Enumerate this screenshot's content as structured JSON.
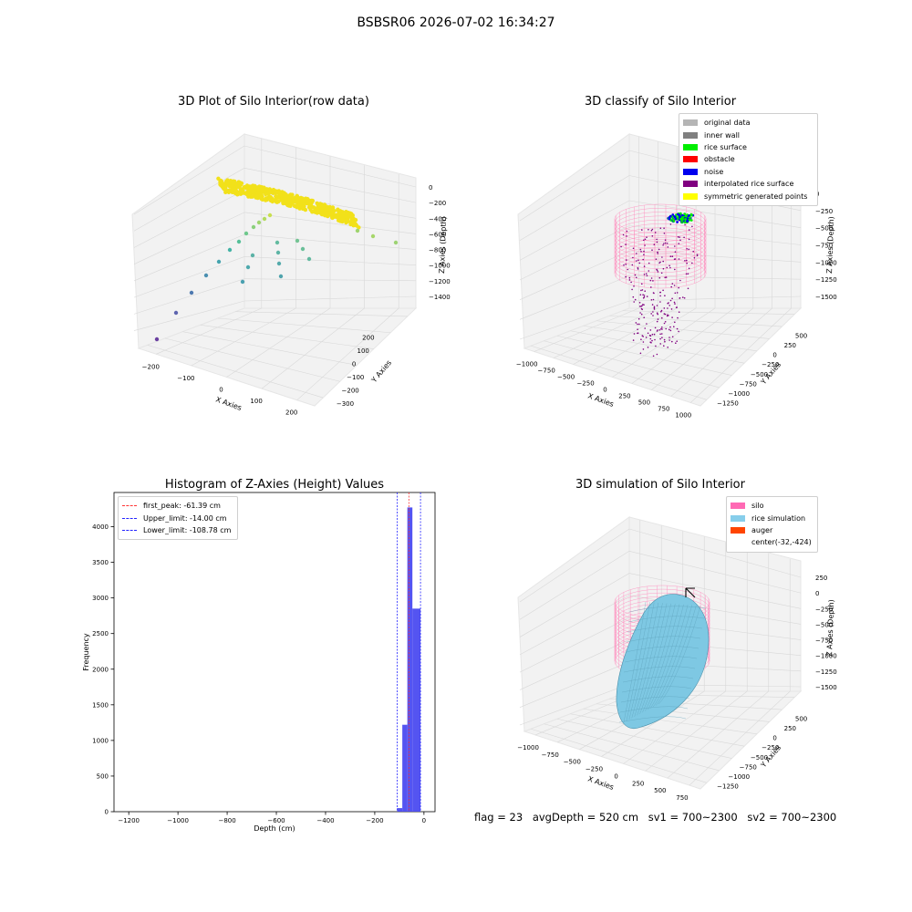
{
  "page_title": "BSBSR06 2026-07-02 16:34:27",
  "colors": {
    "pane": "#f2f2f2",
    "grid": "#d8d8d8",
    "raw_points": "#f2e11a",
    "silo_wire": "#ff88bb",
    "rice": "#7ec8e3",
    "hist_bar": "#4b4bf0",
    "first_peak": "#ff3333",
    "limit_line": "#2222ff"
  },
  "panels": {
    "raw": {
      "title": "3D Plot of Silo Interior(row data)",
      "xlabel": "X Axies",
      "ylabel": "Y Axies",
      "zlabel": "Z Axies (Depth)",
      "xticks": [
        "−200",
        "−100",
        "0",
        "100",
        "200"
      ],
      "yticks": [
        "200",
        "100",
        "0",
        "−100",
        "−200",
        "−300"
      ],
      "zticks": [
        "0",
        "−200",
        "−400",
        "−600",
        "−800",
        "−1000",
        "−1200",
        "−1400"
      ]
    },
    "classify": {
      "title": "3D classify of Silo Interior",
      "xlabel": "X Axies",
      "ylabel": "Y Axies",
      "zlabel": "Z Axies (Depth)",
      "xticks": [
        "−1000",
        "−750",
        "−500",
        "−250",
        "0",
        "250",
        "500",
        "750",
        "1000"
      ],
      "yticks": [
        "500",
        "250",
        "0",
        "−250",
        "−500",
        "−750",
        "−1000",
        "−1250"
      ],
      "zticks": [
        "0",
        "−250",
        "−500",
        "−750",
        "−1000",
        "−1250",
        "−1500"
      ],
      "legend": [
        {
          "label": "original data",
          "color": "#b5b5b5"
        },
        {
          "label": "inner wall",
          "color": "#808080"
        },
        {
          "label": "rice surface",
          "color": "#00ee00"
        },
        {
          "label": "obstacle",
          "color": "#ff0000"
        },
        {
          "label": "noise",
          "color": "#0000ee"
        },
        {
          "label": "interpolated rice surface",
          "color": "#800080"
        },
        {
          "label": "symmetric generated points",
          "color": "#ffff00"
        }
      ]
    },
    "simulation": {
      "title": "3D simulation of Silo Interior",
      "xlabel": "X Axies",
      "ylabel": "Y Axies",
      "zlabel": "Z Axies (Depth)",
      "xticks": [
        "−1000",
        "−750",
        "−500",
        "−250",
        "0",
        "250",
        "500",
        "750"
      ],
      "yticks": [
        "500",
        "250",
        "0",
        "−250",
        "−500",
        "−750",
        "−1000",
        "−1250"
      ],
      "zticks": [
        "250",
        "0",
        "−250",
        "−500",
        "−750",
        "−1000",
        "−1250",
        "−1500"
      ],
      "legend": [
        {
          "label": "silo",
          "color": "#ff69b4"
        },
        {
          "label": "rice simulation",
          "color": "#87ceeb"
        },
        {
          "label": "auger",
          "color": "#ff4500"
        },
        {
          "label": "center(-32,-424)",
          "color": ""
        }
      ]
    }
  },
  "chart_data": {
    "type": "bar",
    "title": "Histogram of Z-Axies (Height) Values",
    "xlabel": "Depth (cm)",
    "ylabel": "Frequency",
    "xlim": [
      -1260,
      45
    ],
    "ylim": [
      0,
      4480
    ],
    "xticks": [
      -1200,
      -1000,
      -800,
      -600,
      -400,
      -200,
      0
    ],
    "yticks": [
      0,
      500,
      1000,
      1500,
      2000,
      2500,
      3000,
      3500,
      4000
    ],
    "bins": [
      {
        "x0": -108.78,
        "x1": -88.0,
        "value": 50
      },
      {
        "x0": -88.0,
        "x1": -67.5,
        "value": 1220
      },
      {
        "x0": -67.5,
        "x1": -47.0,
        "value": 4270
      },
      {
        "x0": -47.0,
        "x1": -14.0,
        "value": 2850
      }
    ],
    "lines": [
      {
        "name": "first_peak: -61.39 cm",
        "x": -61.39,
        "color": "#ff3333"
      },
      {
        "name": "Upper_limit: -14.00 cm",
        "x": -14.0,
        "color": "#2222ff"
      },
      {
        "name": "Lower_limit: -108.78 cm",
        "x": -108.78,
        "color": "#2222ff"
      }
    ],
    "legend_position": "upper left"
  },
  "footer": {
    "flag": "flag = 23",
    "avg_depth": "avgDepth = 520 cm",
    "sv1": "sv1 = 700~2300",
    "sv2": "sv2 = 700~2300"
  }
}
